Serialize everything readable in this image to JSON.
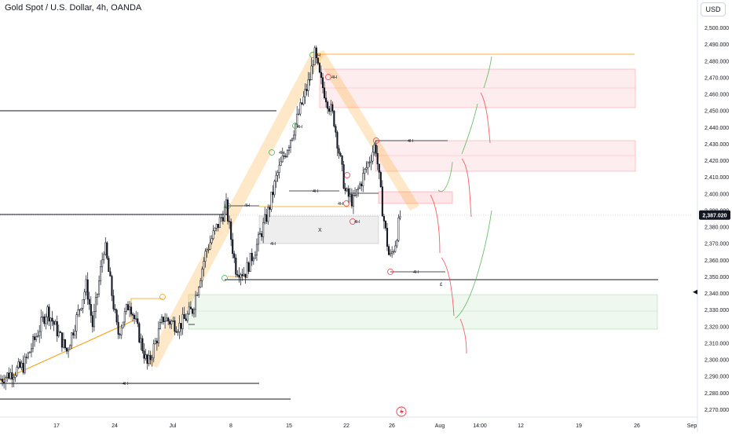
{
  "header": {
    "title": "Gold Spot / U.S. Dollar, 4h, OANDA",
    "currency": "USD"
  },
  "chart_data": {
    "type": "candlestick",
    "ylim": [
      2265,
      2505
    ],
    "y_ticks": [
      2500,
      2490,
      2480,
      2470,
      2460,
      2450,
      2440,
      2430,
      2420,
      2410,
      2400,
      2390,
      2380,
      2370,
      2360,
      2350,
      2340,
      2330,
      2320,
      2310,
      2300,
      2290,
      2280,
      2270
    ],
    "x_ticks": [
      "17",
      "24",
      "Jul",
      "8",
      "15",
      "22",
      "26",
      "Aug",
      "14:00",
      "12",
      "19",
      "26",
      "Sep"
    ],
    "last_price": "2,387.020",
    "grid": false,
    "path": [
      [
        2288,
        0
      ],
      [
        2296,
        30
      ],
      [
        2330,
        60
      ],
      [
        2305,
        85
      ],
      [
        2345,
        110
      ],
      [
        2320,
        118
      ],
      [
        2370,
        133
      ],
      [
        2315,
        150
      ],
      [
        2335,
        165
      ],
      [
        2296,
        188
      ],
      [
        2325,
        208
      ],
      [
        2320,
        228
      ],
      [
        2330,
        245
      ],
      [
        2365,
        262
      ],
      [
        2392,
        288
      ],
      [
        2355,
        300
      ],
      [
        2352,
        312
      ],
      [
        2370,
        328
      ],
      [
        2390,
        342
      ],
      [
        2410,
        352
      ],
      [
        2440,
        375
      ],
      [
        2470,
        395
      ],
      [
        2485,
        400
      ],
      [
        2468,
        408
      ],
      [
        2445,
        425
      ],
      [
        2400,
        440
      ],
      [
        2395,
        450
      ],
      [
        2410,
        462
      ],
      [
        2430,
        478
      ],
      [
        2390,
        487
      ],
      [
        2360,
        496
      ],
      [
        2370,
        503
      ],
      [
        2388,
        510
      ]
    ],
    "annotations": {
      "tf_label": "4H",
      "range_box_label": "X",
      "target_label": "£"
    }
  }
}
